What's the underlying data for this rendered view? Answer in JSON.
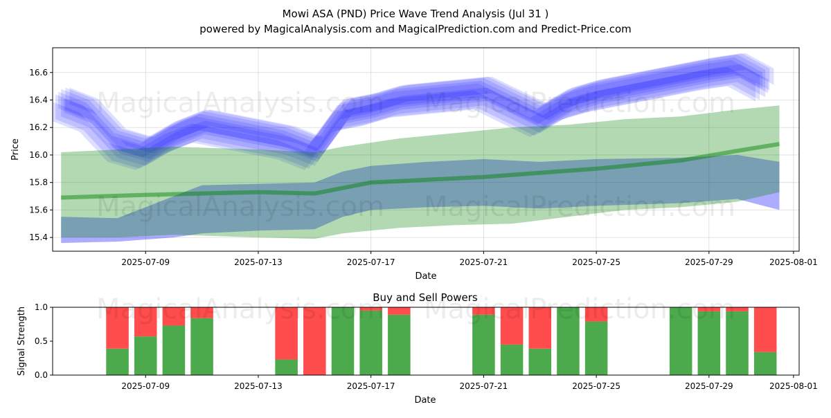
{
  "header": {
    "title": "Mowi ASA (PND) Price Wave Trend Analysis (Jul 31 )",
    "subtitle": "powered by MagicalAnalysis.com and MagicalPrediction.com and Predict-Price.com"
  },
  "watermarks": [
    "MagicalAnalysis.com",
    "MagicalPrediction.com"
  ],
  "colors": {
    "blue": "#0000ff",
    "green": "#008000",
    "buy": "#4caa4c",
    "sell": "#ff4c4c"
  },
  "chart_data": [
    {
      "type": "area",
      "title": "",
      "xlabel": "Date",
      "ylabel": "Price",
      "x_range": [
        "2025-07-05.7",
        "2025-08-01.2"
      ],
      "ylim": [
        15.3,
        16.78
      ],
      "x_ticks": [
        "2025-07-09",
        "2025-07-13",
        "2025-07-17",
        "2025-07-21",
        "2025-07-25",
        "2025-07-29",
        "2025-08-01"
      ],
      "y_ticks": [
        15.4,
        15.6,
        15.8,
        16.0,
        16.2,
        16.4,
        16.6
      ],
      "grid": true,
      "series": [
        {
          "color": "#0000ff",
          "kind": "wave_bands",
          "x": [
            "2025-07-06",
            "2025-07-07",
            "2025-07-08",
            "2025-07-09",
            "2025-07-10",
            "2025-07-11",
            "2025-07-12",
            "2025-07-13",
            "2025-07-14",
            "2025-07-15",
            "2025-07-16",
            "2025-07-17",
            "2025-07-18",
            "2025-07-19",
            "2025-07-20",
            "2025-07-21",
            "2025-07-22",
            "2025-07-23",
            "2025-07-24",
            "2025-07-25",
            "2025-07-26",
            "2025-07-27",
            "2025-07-28",
            "2025-07-29",
            "2025-07-30",
            "2025-07-31"
          ],
          "center": [
            16.38,
            16.3,
            16.08,
            16.02,
            16.14,
            16.22,
            16.18,
            16.14,
            16.1,
            16.02,
            16.3,
            16.34,
            16.4,
            16.42,
            16.44,
            16.46,
            16.36,
            16.26,
            16.38,
            16.44,
            16.48,
            16.52,
            16.56,
            16.6,
            16.63,
            16.52
          ]
        },
        {
          "color": "#0000ff",
          "kind": "band",
          "x": [
            "2025-07-06",
            "2025-07-08",
            "2025-07-10",
            "2025-07-11",
            "2025-07-13",
            "2025-07-15",
            "2025-07-16",
            "2025-07-17",
            "2025-07-19",
            "2025-07-21",
            "2025-07-23",
            "2025-07-25",
            "2025-07-28",
            "2025-07-30",
            "2025-07-31.5"
          ],
          "upper": [
            15.55,
            15.54,
            15.7,
            15.78,
            15.79,
            15.8,
            15.88,
            15.92,
            15.95,
            15.97,
            15.95,
            15.97,
            15.98,
            16.0,
            15.95
          ],
          "lower": [
            15.36,
            15.37,
            15.4,
            15.43,
            15.45,
            15.46,
            15.55,
            15.6,
            15.62,
            15.63,
            15.61,
            15.63,
            15.65,
            15.68,
            15.6
          ]
        },
        {
          "color": "#008000",
          "kind": "band",
          "x": [
            "2025-07-06",
            "2025-07-08",
            "2025-07-10",
            "2025-07-13",
            "2025-07-15",
            "2025-07-16",
            "2025-07-18",
            "2025-07-20",
            "2025-07-22",
            "2025-07-24",
            "2025-07-26",
            "2025-07-28",
            "2025-07-30",
            "2025-07-31.5"
          ],
          "upper": [
            16.02,
            16.04,
            16.06,
            16.04,
            16.02,
            16.06,
            16.12,
            16.16,
            16.2,
            16.22,
            16.26,
            16.28,
            16.33,
            16.36
          ],
          "lower": [
            15.4,
            15.4,
            15.42,
            15.4,
            15.39,
            15.43,
            15.47,
            15.49,
            15.5,
            15.55,
            15.6,
            15.62,
            15.66,
            15.73
          ]
        },
        {
          "color": "#008000",
          "kind": "line",
          "x": [
            "2025-07-06",
            "2025-07-09",
            "2025-07-13",
            "2025-07-15",
            "2025-07-17",
            "2025-07-21",
            "2025-07-25",
            "2025-07-28",
            "2025-07-30",
            "2025-07-31.5"
          ],
          "y": [
            15.69,
            15.71,
            15.73,
            15.72,
            15.8,
            15.84,
            15.9,
            15.96,
            16.03,
            16.08
          ]
        }
      ]
    },
    {
      "type": "bar",
      "title": "Buy and Sell Powers",
      "xlabel": "Date",
      "ylabel": "Signal Strength",
      "ylim": [
        0,
        1
      ],
      "y_ticks": [
        0.0,
        0.5,
        1.0
      ],
      "x_ticks": [
        "2025-07-09",
        "2025-07-13",
        "2025-07-17",
        "2025-07-21",
        "2025-07-25",
        "2025-07-29",
        "2025-08-01"
      ],
      "x": [
        "2025-07-08",
        "2025-07-09",
        "2025-07-10",
        "2025-07-11",
        "2025-07-14",
        "2025-07-15",
        "2025-07-16",
        "2025-07-17",
        "2025-07-18",
        "2025-07-21",
        "2025-07-22",
        "2025-07-23",
        "2025-07-24",
        "2025-07-25",
        "2025-07-28",
        "2025-07-29",
        "2025-07-30",
        "2025-07-31"
      ],
      "series": [
        {
          "name": "Buy",
          "color": "#4caa4c",
          "values": [
            0.39,
            0.57,
            0.73,
            0.84,
            0.23,
            0.0,
            1.0,
            0.95,
            0.89,
            0.89,
            0.45,
            0.39,
            1.0,
            0.79,
            1.0,
            0.94,
            0.94,
            0.34
          ]
        },
        {
          "name": "Sell",
          "color": "#ff4c4c",
          "values": [
            0.61,
            0.43,
            0.27,
            0.16,
            0.77,
            1.0,
            0.0,
            0.05,
            0.11,
            0.11,
            0.55,
            0.61,
            0.0,
            0.21,
            0.0,
            0.06,
            0.06,
            0.66
          ]
        }
      ]
    }
  ]
}
